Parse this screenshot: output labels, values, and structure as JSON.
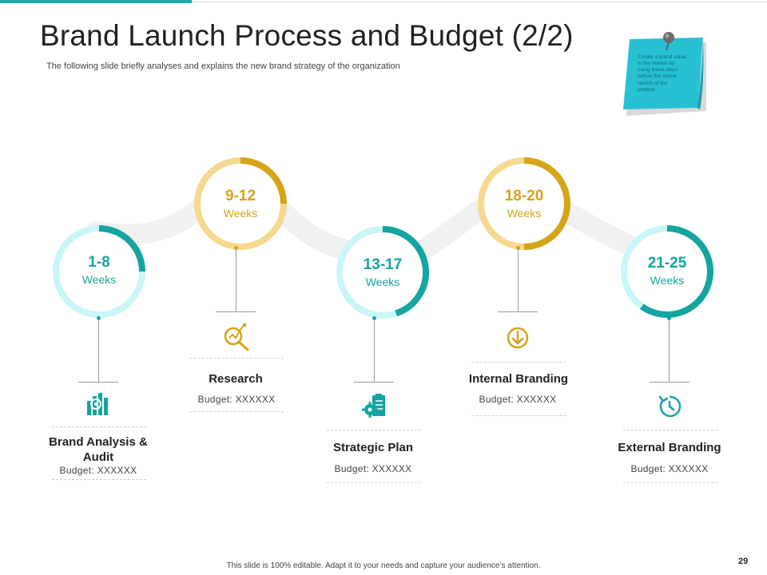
{
  "slide": {
    "title": "Brand Launch Process and Budget (2/2)",
    "subtitle": "The following slide briefly analyses and explains the new brand strategy of the organization",
    "note": "Create a brand value in the market by using these steps before the actual launch of the product.",
    "footer": "This slide is 100% editable. Adapt it to your needs and capture your audience’s attention.",
    "page_number": "29"
  },
  "colors": {
    "teal": "#14a5a0",
    "teal_light": "#c9f6f8",
    "gold": "#d6a418",
    "gold_light": "#f5d98e",
    "note": "#27c1d3"
  },
  "steps": [
    {
      "weeks": "1-8",
      "unit": "Weeks",
      "name": "Brand Analysis & Audit",
      "budget": "Budget: XXXXXX",
      "icon": "bar-chart-icon",
      "accent": "teal",
      "progress": 0.25
    },
    {
      "weeks": "9-12",
      "unit": "Weeks",
      "name": "Research",
      "budget": "Budget: XXXXXX",
      "icon": "magnifier-trend-icon",
      "accent": "gold",
      "progress": 0.25
    },
    {
      "weeks": "13-17",
      "unit": "Weeks",
      "name": "Strategic Plan",
      "budget": "Budget: XXXXXX",
      "icon": "gear-clipboard-icon",
      "accent": "teal",
      "progress": 0.45
    },
    {
      "weeks": "18-20",
      "unit": "Weeks",
      "name": "Internal Branding",
      "budget": "Budget: XXXXXX",
      "icon": "down-arrow-circle-icon",
      "accent": "gold",
      "progress": 0.5
    },
    {
      "weeks": "21-25",
      "unit": "Weeks",
      "name": "External Branding",
      "budget": "Budget: XXXXXX",
      "icon": "refresh-clock-icon",
      "accent": "teal",
      "progress": 0.6
    }
  ]
}
